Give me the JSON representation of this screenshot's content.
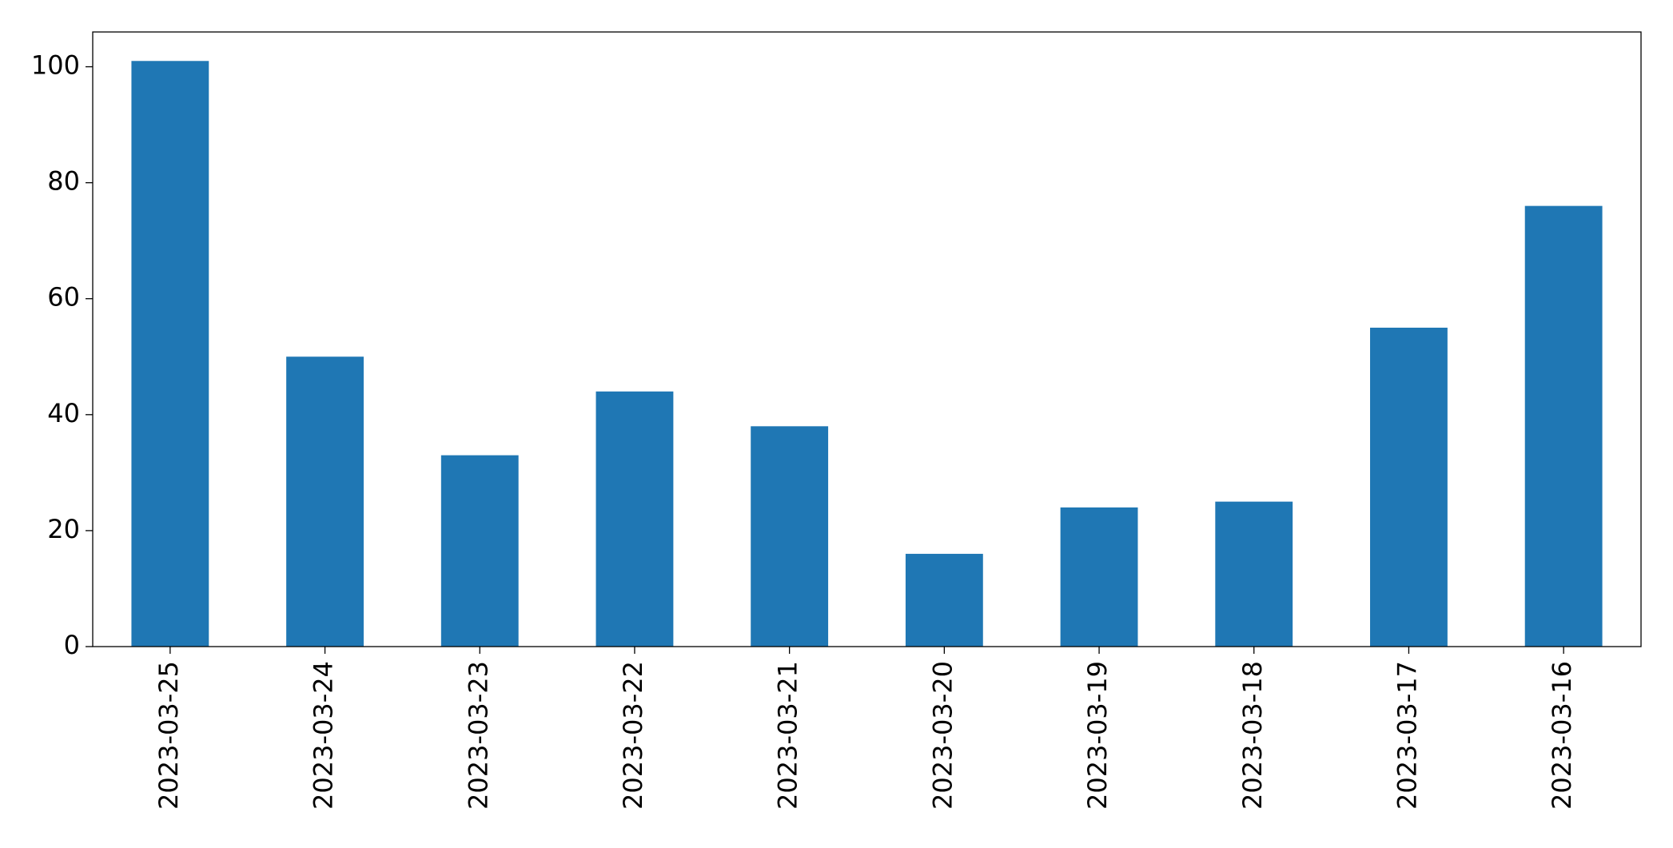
{
  "chart_data": {
    "type": "bar",
    "categories": [
      "2023-03-25",
      "2023-03-24",
      "2023-03-23",
      "2023-03-22",
      "2023-03-21",
      "2023-03-20",
      "2023-03-19",
      "2023-03-18",
      "2023-03-17",
      "2023-03-16"
    ],
    "values": [
      101,
      50,
      33,
      44,
      38,
      16,
      24,
      25,
      55,
      76
    ],
    "color": "#1f77b4",
    "ylim": [
      0,
      106
    ],
    "yticks": [
      0,
      20,
      40,
      60,
      80,
      100
    ],
    "grid": false
  }
}
